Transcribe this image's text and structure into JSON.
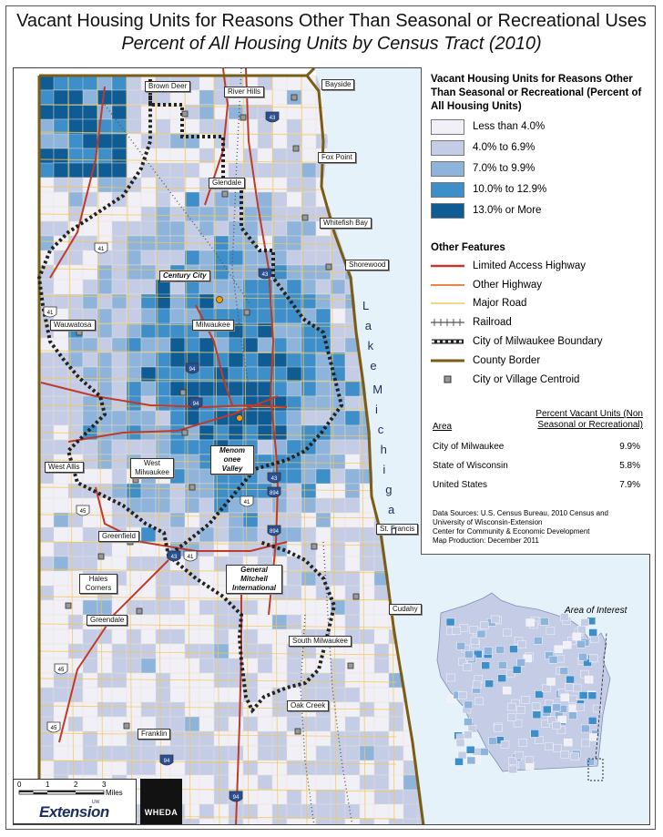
{
  "title": "Vacant Housing Units for Reasons Other Than Seasonal or Recreational Uses",
  "subtitle": "Percent of All Housing Units by Census Tract (2010)",
  "colors": {
    "class_1": "#f2f0f7",
    "class_2": "#c5cde6",
    "class_3": "#8fb4dc",
    "class_4": "#3d8ec9",
    "class_5": "#0f5c94",
    "lake": "#e6f2fa",
    "highway": "#c0392b",
    "other_highway": "#e8864a",
    "major_road": "#f2c85a",
    "county_border": "#7a5c12"
  },
  "legend": {
    "title": "Vacant Housing Units for Reasons Other Than Seasonal or Recreational (Percent of All Housing Units)",
    "classes": [
      {
        "label": "Less than 4.0%",
        "color": "#f2f0f7"
      },
      {
        "label": "4.0% to 6.9%",
        "color": "#c5cde6"
      },
      {
        "label": "7.0% to 9.9%",
        "color": "#8fb4dc"
      },
      {
        "label": "10.0% to 12.9%",
        "color": "#3d8ec9"
      },
      {
        "label": "13.0% or More",
        "color": "#0f5c94"
      }
    ],
    "other_features_title": "Other Features",
    "other_features": [
      {
        "label": "Limited Access Highway",
        "icon": "limited-access-highway-line"
      },
      {
        "label": "Other Highway",
        "icon": "other-highway-line"
      },
      {
        "label": "Major Road",
        "icon": "major-road-line"
      },
      {
        "label": "Railroad",
        "icon": "railroad-line"
      },
      {
        "label": "City of Milwaukee Boundary",
        "icon": "city-boundary-line"
      },
      {
        "label": "County Border",
        "icon": "county-border-line"
      },
      {
        "label": "City or Village Centroid",
        "icon": "centroid-square"
      }
    ]
  },
  "percent_table": {
    "header": "Percent Vacant Units (Non Seasonal or Recreational)",
    "area_label": "Area",
    "rows": [
      {
        "area": "City of Milwaukee",
        "value": "9.9%"
      },
      {
        "area": "State of Wisconsin",
        "value": "5.8%"
      },
      {
        "area": "United States",
        "value": "7.9%"
      }
    ]
  },
  "sources": [
    "Data Sources: U.S. Census Bureau, 2010 Census and",
    "University of Wisconsin-Extension",
    "Center for Community & Economic Development",
    "Map Production: December 2011"
  ],
  "inset": {
    "label": "Area of Interest"
  },
  "lake_label": "Lake Michigan",
  "place_labels": {
    "brown_deer": "Brown Deer",
    "river_hills": "River Hills",
    "bayside": "Bayside",
    "fox_point": "Fox Point",
    "glendale": "Glendale",
    "whitefish_bay": "Whitefish Bay",
    "shorewood": "Shorewood",
    "century_city": "Century City",
    "milwaukee": "Milwaukee",
    "wauwatosa": "Wauwatosa",
    "menomonee_valley": "Menom onee Valley",
    "west_allis": "West Allis",
    "west_milwaukee": "West Milwaukee",
    "st_francis": "St. Francis",
    "greenfield": "Greenfield",
    "general_mitchell": "General Mitchell International",
    "hales_corners": "Hales Corners",
    "cudahy": "Cudahy",
    "greendale": "Greendale",
    "south_milwaukee": "South Milwaukee",
    "oak_creek": "Oak Creek",
    "franklin": "Franklin"
  },
  "shields": [
    "43",
    "41",
    "43",
    "41",
    "94",
    "94",
    "43",
    "894",
    "45",
    "41",
    "894",
    "43",
    "41",
    "94",
    "45",
    "45",
    "94"
  ],
  "scale_bar": {
    "ticks": [
      "0",
      "1",
      "2",
      "3"
    ],
    "unit": "Miles"
  },
  "logos": {
    "extension": "Extension",
    "extension_prefix": "UW",
    "wheda": "WHEDA"
  }
}
